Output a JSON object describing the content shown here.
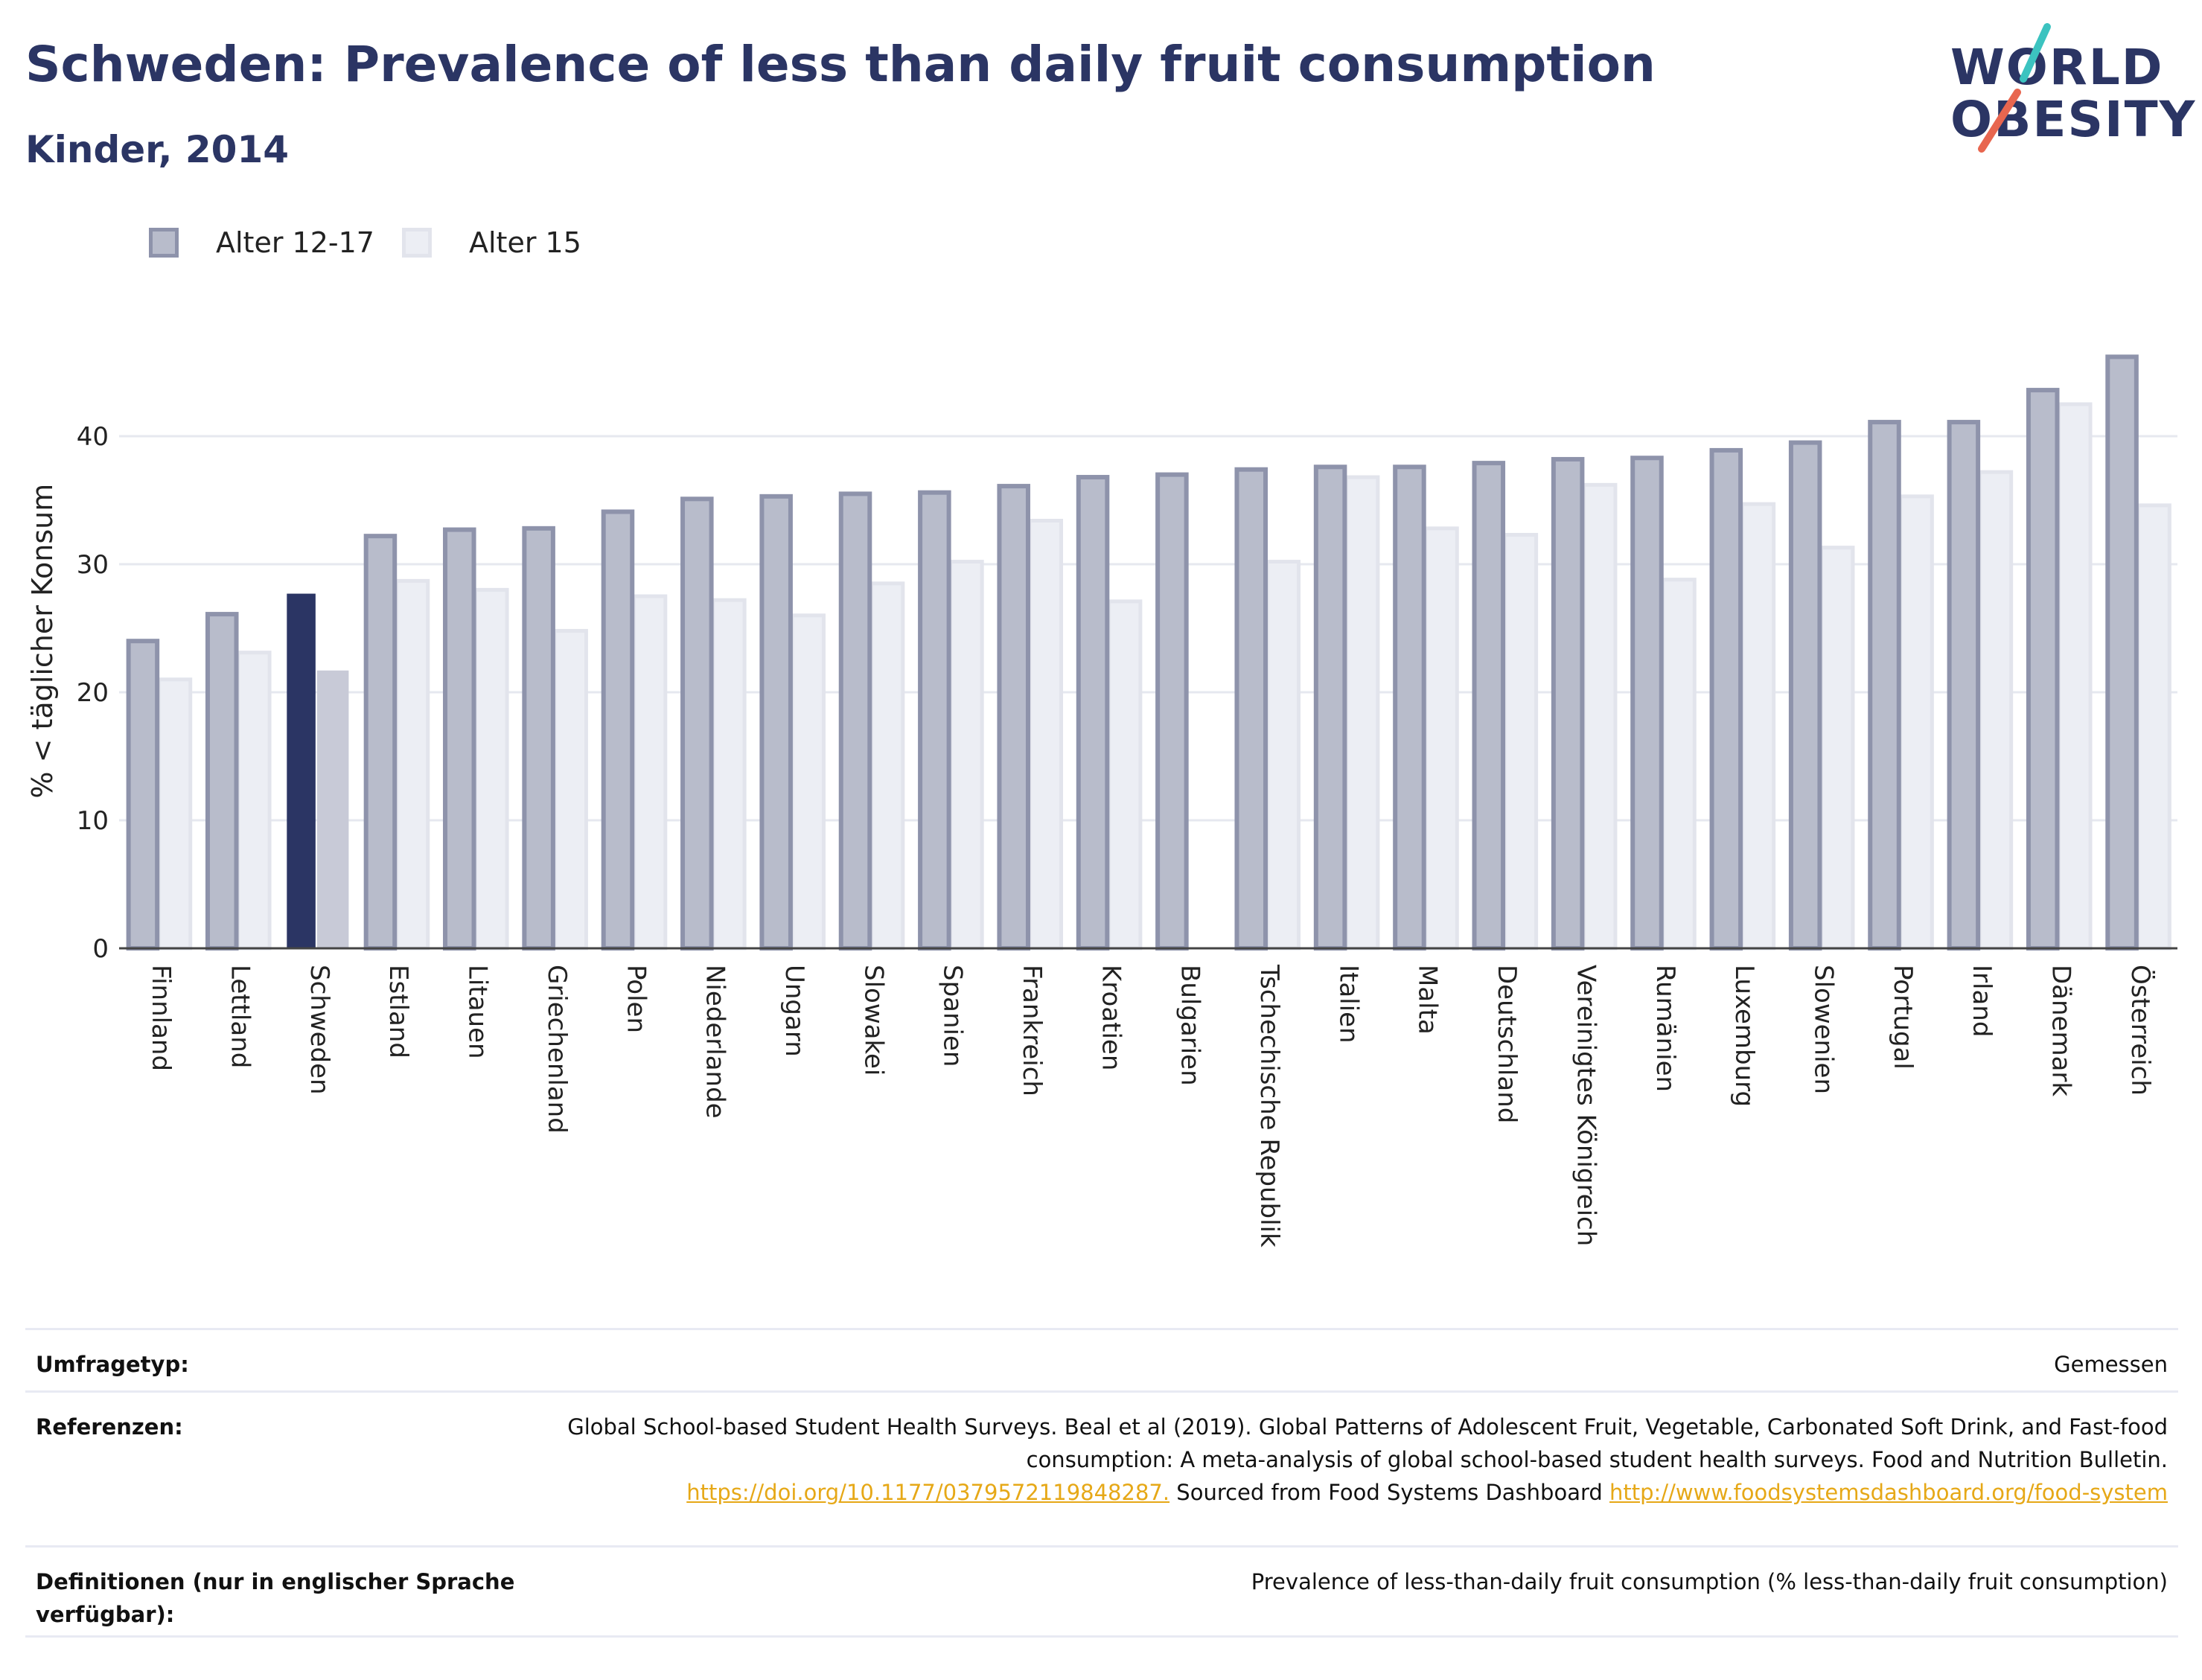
{
  "header": {
    "title": "Schweden: Prevalence of less than daily fruit consumption",
    "subtitle": "Kinder, 2014"
  },
  "logo": {
    "line1": "WORLD",
    "line2": "OBESITY",
    "icon": "world-obesity-logo",
    "colors": {
      "text": "#2b3564",
      "slash_top": "#3cc3c0",
      "slash_bottom": "#e8664f"
    }
  },
  "legend": [
    {
      "label": "Alter 12-17",
      "fill": "#b8bccb",
      "stroke": "#8e93ab"
    },
    {
      "label": "Alter 15",
      "fill": "#eceef4",
      "stroke": "#e2e4ec"
    }
  ],
  "chart_data": {
    "type": "bar",
    "ylabel": "% < täglicher Konsum",
    "ylim": [
      0,
      48
    ],
    "yticks": [
      0,
      10,
      20,
      30,
      40
    ],
    "grid": true,
    "legend_position": "top-left",
    "highlight_category": "Schweden",
    "highlight_colors": {
      "Alter 12-17": "#2b3564",
      "Alter 15": "#c8cad7"
    },
    "categories": [
      "Finnland",
      "Lettland",
      "Schweden",
      "Estland",
      "Litauen",
      "Griechenland",
      "Polen",
      "Niederlande",
      "Ungarn",
      "Slowakei",
      "Spanien",
      "Frankreich",
      "Kroatien",
      "Bulgarien",
      "Tschechische Republik",
      "Italien",
      "Malta",
      "Deutschland",
      "Vereinigtes Königreich",
      "Rumänien",
      "Luxemburg",
      "Slowenien",
      "Portugal",
      "Irland",
      "Dänemark",
      "Österreich"
    ],
    "series": [
      {
        "name": "Alter 12-17",
        "values": [
          24.0,
          26.1,
          27.7,
          32.2,
          32.7,
          32.8,
          34.1,
          35.1,
          35.3,
          35.5,
          35.6,
          36.1,
          36.8,
          37.0,
          37.4,
          37.6,
          37.6,
          37.9,
          38.2,
          38.3,
          38.9,
          39.5,
          41.1,
          41.1,
          43.6,
          46.2
        ]
      },
      {
        "name": "Alter 15",
        "values": [
          21.0,
          23.1,
          21.7,
          28.7,
          28.0,
          24.8,
          27.5,
          27.2,
          26.0,
          28.5,
          30.2,
          33.4,
          27.1,
          null,
          30.2,
          36.8,
          32.8,
          32.3,
          36.2,
          28.8,
          34.7,
          31.3,
          35.3,
          37.2,
          42.5,
          34.6
        ]
      }
    ]
  },
  "meta": {
    "rows": [
      {
        "key": "Umfragetyp:",
        "value": "Gemessen"
      },
      {
        "key": "Referenzen:",
        "value_text": "Global School-based Student Health Surveys. Beal et al (2019). Global Patterns of Adolescent Fruit, Vegetable, Carbonated Soft Drink, and Fast-food consumption: A meta-analysis of global school-based student health surveys. Food and Nutrition Bulletin.",
        "link1": "https://doi.org/10.1177/0379572119848287.",
        "middle_text": "Sourced from Food Systems Dashboard",
        "link2": "http://www.foodsystemsdashboard.org/food-system"
      },
      {
        "key": "Definitionen (nur in englischer Sprache verfügbar):",
        "value": "Prevalence of less-than-daily fruit consumption (% less-than-daily fruit consumption)"
      }
    ]
  }
}
